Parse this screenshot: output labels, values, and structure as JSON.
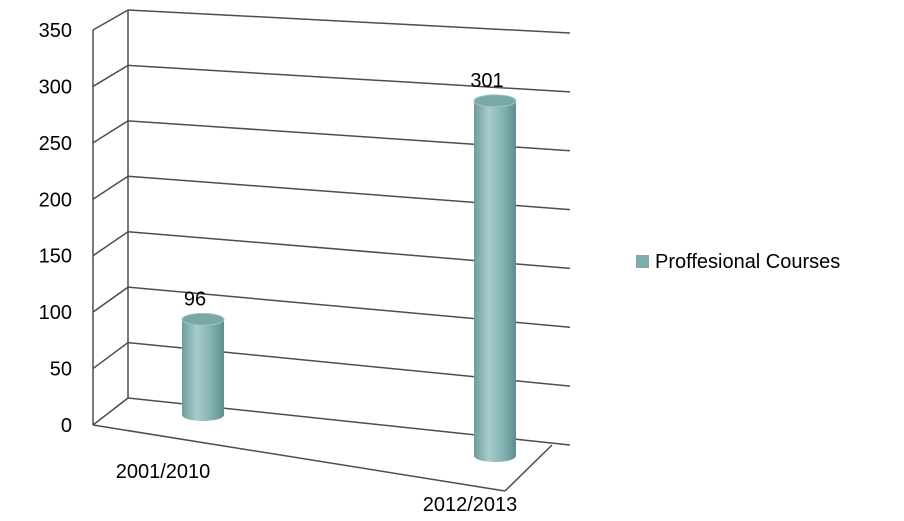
{
  "chart_data": {
    "type": "bar",
    "style": "3d-cylinder",
    "categories": [
      "2001/2010",
      "2012/2013"
    ],
    "series": [
      {
        "name": "Proffesional Courses",
        "values": [
          96,
          301
        ],
        "color": "#7fadad"
      }
    ],
    "data_labels": [
      "96",
      "301"
    ],
    "y_ticks": [
      "0",
      "50",
      "100",
      "150",
      "200",
      "250",
      "300",
      "350"
    ],
    "ylim": [
      0,
      350
    ],
    "grid": true,
    "legend_position": "right",
    "colors": {
      "bar": "#7fadad",
      "grid": "#4d4d4d",
      "text": "#000000"
    }
  }
}
